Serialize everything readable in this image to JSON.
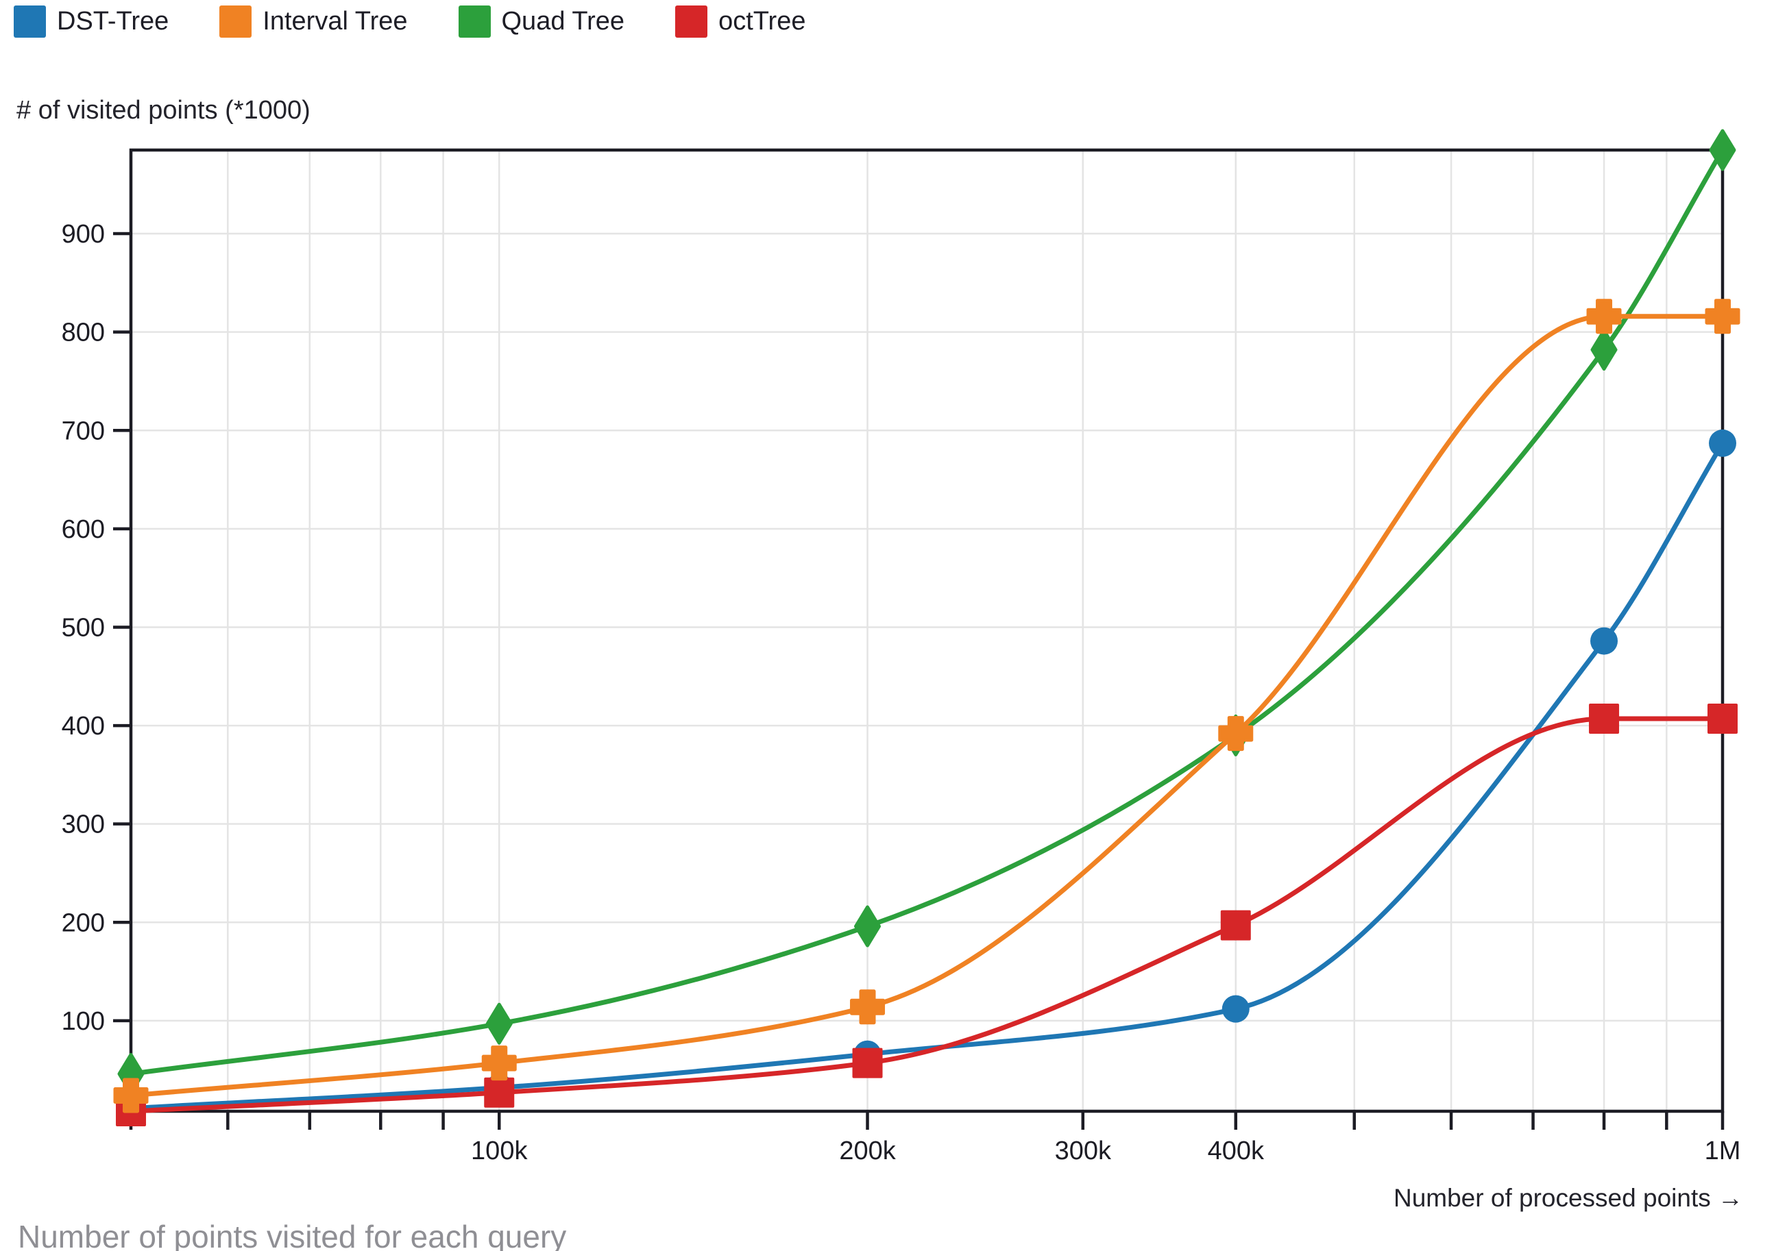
{
  "legend": {
    "items": [
      {
        "label": "DST-Tree",
        "color": "#1f77b4"
      },
      {
        "label": "Interval Tree",
        "color": "#f08223"
      },
      {
        "label": "Quad Tree",
        "color": "#2ca03c"
      },
      {
        "label": "octTree",
        "color": "#d62628"
      }
    ]
  },
  "colors": {
    "axis": "#1c1c24",
    "grid": "#e4e4e4",
    "tick_text": "#1c1c24",
    "caption_text": "#8f8f94"
  },
  "chart_data": {
    "type": "line",
    "title": "Number of points visited for each query",
    "ylabel": "# of visited points (*1000)",
    "xlabel": "Number of processed points →",
    "x_scale": "log",
    "x_domain": [
      50000,
      1000000
    ],
    "y_domain": [
      8,
      985
    ],
    "grid": true,
    "legend_position": "top-left",
    "x": [
      50000,
      100000,
      200000,
      400000,
      800000,
      1000000
    ],
    "x_minor_ticks": [
      50000,
      60000,
      70000,
      80000,
      90000,
      100000,
      200000,
      300000,
      400000,
      500000,
      600000,
      700000,
      800000,
      900000,
      1000000
    ],
    "x_tick_labels": [
      {
        "value": 100000,
        "label": "100k"
      },
      {
        "value": 200000,
        "label": "200k"
      },
      {
        "value": 300000,
        "label": "300k"
      },
      {
        "value": 400000,
        "label": "400k"
      },
      {
        "value": 1000000,
        "label": "1M"
      }
    ],
    "y_ticks": [
      100,
      200,
      300,
      400,
      500,
      600,
      700,
      800,
      900
    ],
    "series": [
      {
        "name": "DST-Tree",
        "color": "#1f77b4",
        "marker": "circle",
        "z": 0,
        "values": [
          11,
          32,
          66,
          112,
          486,
          687
        ]
      },
      {
        "name": "Interval Tree",
        "color": "#f08223",
        "marker": "cross",
        "z": 3,
        "values": [
          24,
          57,
          114,
          392,
          816,
          816
        ]
      },
      {
        "name": "Quad Tree",
        "color": "#2ca03c",
        "marker": "diamond",
        "z": 1,
        "values": [
          46,
          97,
          196,
          390,
          782,
          985
        ]
      },
      {
        "name": "octTree",
        "color": "#d62628",
        "marker": "square",
        "z": 2,
        "values": [
          8,
          27,
          57,
          197,
          407,
          407
        ]
      }
    ]
  }
}
